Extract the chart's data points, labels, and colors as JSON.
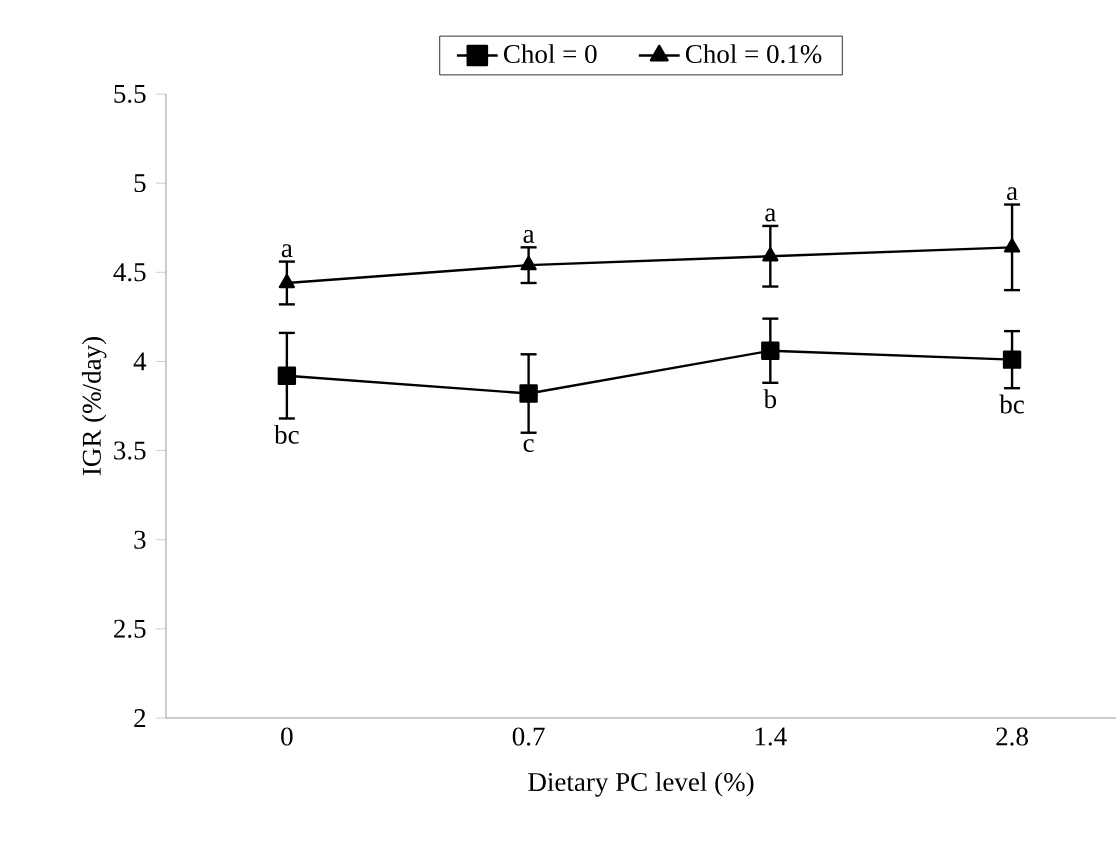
{
  "chart_data": {
    "type": "line",
    "xlabel": "Dietary PC level (%)",
    "ylabel": "IGR (%/day)",
    "categories": [
      "0",
      "0.7",
      "1.4",
      "2.8"
    ],
    "series": [
      {
        "name": "Chol = 0",
        "color": "#000000",
        "marker": "square",
        "values": [
          3.92,
          3.82,
          4.06,
          4.01
        ],
        "errors": [
          0.24,
          0.22,
          0.18,
          0.16
        ]
      },
      {
        "name": "Chol = 0.1%",
        "color": "#000000",
        "marker": "triangle",
        "values": [
          4.44,
          4.54,
          4.59,
          4.64
        ],
        "errors": [
          0.12,
          0.1,
          0.17,
          0.24
        ]
      }
    ],
    "ylim": [
      2,
      5.5
    ],
    "yticks": [
      2,
      2.5,
      3,
      3.5,
      4,
      4.5,
      5,
      5.5
    ],
    "legend": "top",
    "grid": false,
    "line_style": "solid",
    "annotations": [
      {
        "text": "a",
        "x": "0",
        "y": 4.44
      },
      {
        "text": "a",
        "x": "0.7",
        "y": 4.54
      },
      {
        "text": "a",
        "x": "1.4",
        "y": 4.59
      },
      {
        "text": "a",
        "x": "2.8",
        "y": 4.64
      },
      {
        "text": "bc",
        "x": "0",
        "y": 3.92
      },
      {
        "text": "c",
        "x": "0.7",
        "y": 3.82
      },
      {
        "text": "b",
        "x": "1.4",
        "y": 4.06
      },
      {
        "text": "bc",
        "x": "2.8",
        "y": 4.01
      }
    ]
  }
}
